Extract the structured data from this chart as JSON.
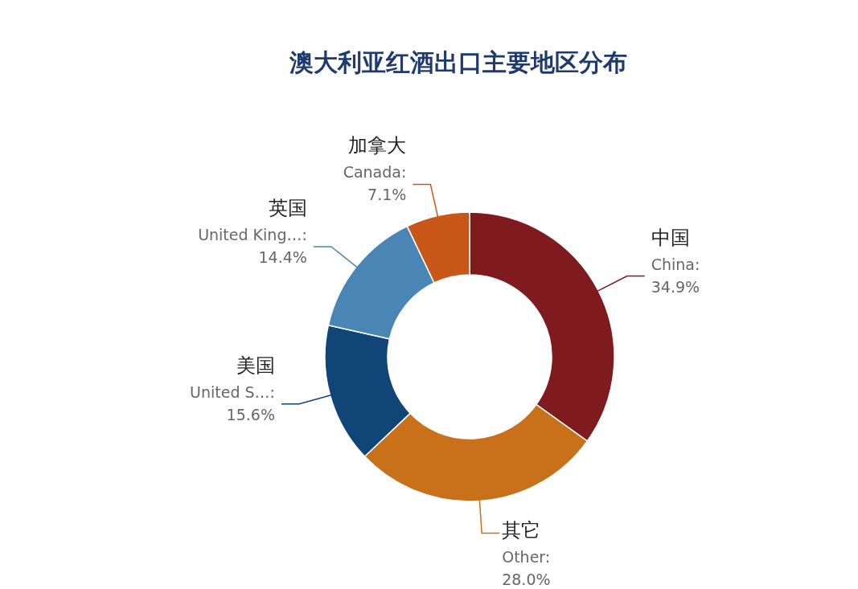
{
  "chart_data": {
    "type": "donut",
    "title": "澳大利亚红酒出口主要地区分布",
    "categories": [
      "中国",
      "其它",
      "美国",
      "英国",
      "加拿大"
    ],
    "values": [
      34.9,
      28.0,
      15.6,
      14.4,
      7.1
    ],
    "colors": [
      "#7f1a1f",
      "#c8701a",
      "#0f4577",
      "#4a86b5",
      "#c9571a"
    ],
    "value_labels": [
      "China: 34.9%",
      "Other: 28.0%",
      "United S…: 15.6%",
      "United King…: 14.4%",
      "Canada: 7.1%"
    ]
  }
}
